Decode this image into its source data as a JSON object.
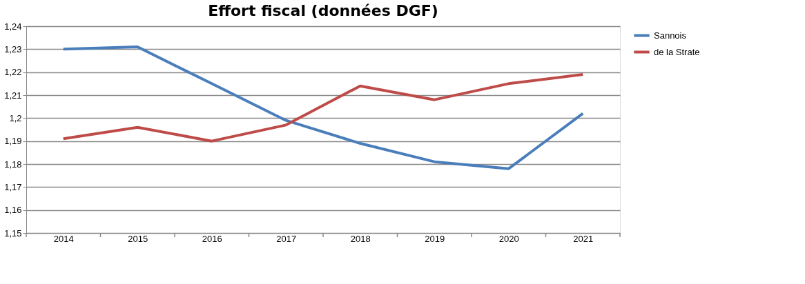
{
  "chart_data": {
    "type": "line",
    "title": "Effort fiscal (données DGF)",
    "categories": [
      "2014",
      "2015",
      "2016",
      "2017",
      "2018",
      "2019",
      "2020",
      "2021"
    ],
    "series": [
      {
        "name": "Sannois",
        "color": "#4a7ebb",
        "values": [
          1.23,
          1.231,
          1.215,
          1.199,
          1.189,
          1.181,
          1.178,
          1.202
        ]
      },
      {
        "name": "de la Strate",
        "color": "#be4b48",
        "values": [
          1.191,
          1.196,
          1.19,
          1.197,
          1.214,
          1.208,
          1.215,
          1.219
        ]
      }
    ],
    "ylim": [
      1.15,
      1.24
    ],
    "yticks": [
      {
        "value": 1.15,
        "label": "1,15"
      },
      {
        "value": 1.16,
        "label": "1,16"
      },
      {
        "value": 1.17,
        "label": "1,17"
      },
      {
        "value": 1.18,
        "label": "1,18"
      },
      {
        "value": 1.19,
        "label": "1,19"
      },
      {
        "value": 1.2,
        "label": "1,2"
      },
      {
        "value": 1.21,
        "label": "1,21"
      },
      {
        "value": 1.22,
        "label": "1,22"
      },
      {
        "value": 1.23,
        "label": "1,23"
      },
      {
        "value": 1.24,
        "label": "1,24"
      }
    ],
    "grid": "y",
    "legend": "right",
    "marker": "none",
    "line_style": "solid"
  }
}
